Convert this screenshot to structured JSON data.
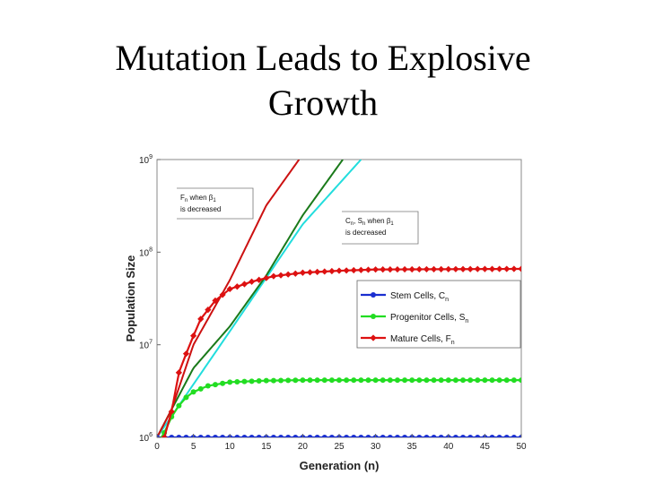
{
  "slide": {
    "title_line1": "Mutation Leads to Explosive",
    "title_line2": "Growth"
  },
  "colors": {
    "stem": "#1a2fd0",
    "progenitor": "#22dd22",
    "mature": "#dd1111",
    "fn_decreased": "#cc1111",
    "sn_decreased": "#1a7a1a",
    "cn_decreased": "#22dddd"
  },
  "chart_data": {
    "type": "line",
    "xlabel": "Generation   (n)",
    "ylabel": "Population Size",
    "xlim": [
      0,
      50
    ],
    "ylim_log10": [
      6,
      9
    ],
    "y_scale": "log",
    "x_ticks": [
      "0",
      "5",
      "10",
      "15",
      "20",
      "25",
      "30",
      "35",
      "40",
      "45",
      "50"
    ],
    "y_ticks": [
      {
        "base": "10",
        "exp": "6"
      },
      {
        "base": "10",
        "exp": "7"
      },
      {
        "base": "10",
        "exp": "8"
      },
      {
        "base": "10",
        "exp": "9"
      }
    ],
    "grid": false,
    "legend_position": "right",
    "legend": [
      {
        "label": "Stem Cells, C",
        "sub": "n"
      },
      {
        "label": "Progenitor Cells, S",
        "sub": "n"
      },
      {
        "label": "Mature Cells, F",
        "sub": "n"
      }
    ],
    "annotations": [
      {
        "label_a": "F",
        "sub_a": "n",
        "label_b": " when β",
        "sub_b": "1",
        "line2": "is decreased"
      },
      {
        "label_a": "C",
        "sub_a": "n",
        "label_b": ", S",
        "sub_b": "n",
        "label_c": " when β",
        "sub_c": "1",
        "line2": "is decreased"
      }
    ],
    "series": [
      {
        "name": "Stem Cells, Cn",
        "marker": "circle",
        "x": [
          0,
          50
        ],
        "y": [
          1000000,
          1000000
        ]
      },
      {
        "name": "Progenitor Cells, Sn",
        "marker": "circle",
        "x": [
          0,
          1,
          2,
          3,
          4,
          5,
          7,
          10,
          15,
          20,
          50
        ],
        "y": [
          850000,
          1120000,
          1670000,
          2200000,
          2700000,
          3100000,
          3600000,
          3950000,
          4100000,
          4150000,
          4150000
        ]
      },
      {
        "name": "Mature Cells, Fn",
        "marker": "diamond",
        "x": [
          1,
          2,
          3,
          4,
          5,
          6,
          8,
          10,
          13,
          16,
          20,
          25,
          30,
          50
        ],
        "y": [
          1000000,
          1900000,
          5000000,
          8000000,
          12500000,
          19000000,
          30000000,
          40000000,
          48000000,
          55000000,
          60000000,
          63000000,
          65000000,
          66000000
        ]
      },
      {
        "name": "Fn when β1 is decreased",
        "marker": "none",
        "x": [
          0,
          2,
          5,
          10,
          15,
          19.5
        ],
        "y": [
          1000000,
          2000000,
          10000000,
          50000000,
          320000000,
          1000000000
        ]
      },
      {
        "name": "Sn when β1 is decreased",
        "marker": "none",
        "x": [
          0,
          2,
          5,
          10,
          15,
          20,
          25.5
        ],
        "y": [
          1000000,
          2000000,
          5600000,
          15800000,
          56000000,
          250000000,
          1000000000
        ]
      },
      {
        "name": "Cn when β1 is decreased",
        "marker": "none",
        "x": [
          0,
          10,
          20,
          28
        ],
        "y": [
          1000000,
          14000000,
          200000000,
          1000000000
        ]
      }
    ]
  }
}
